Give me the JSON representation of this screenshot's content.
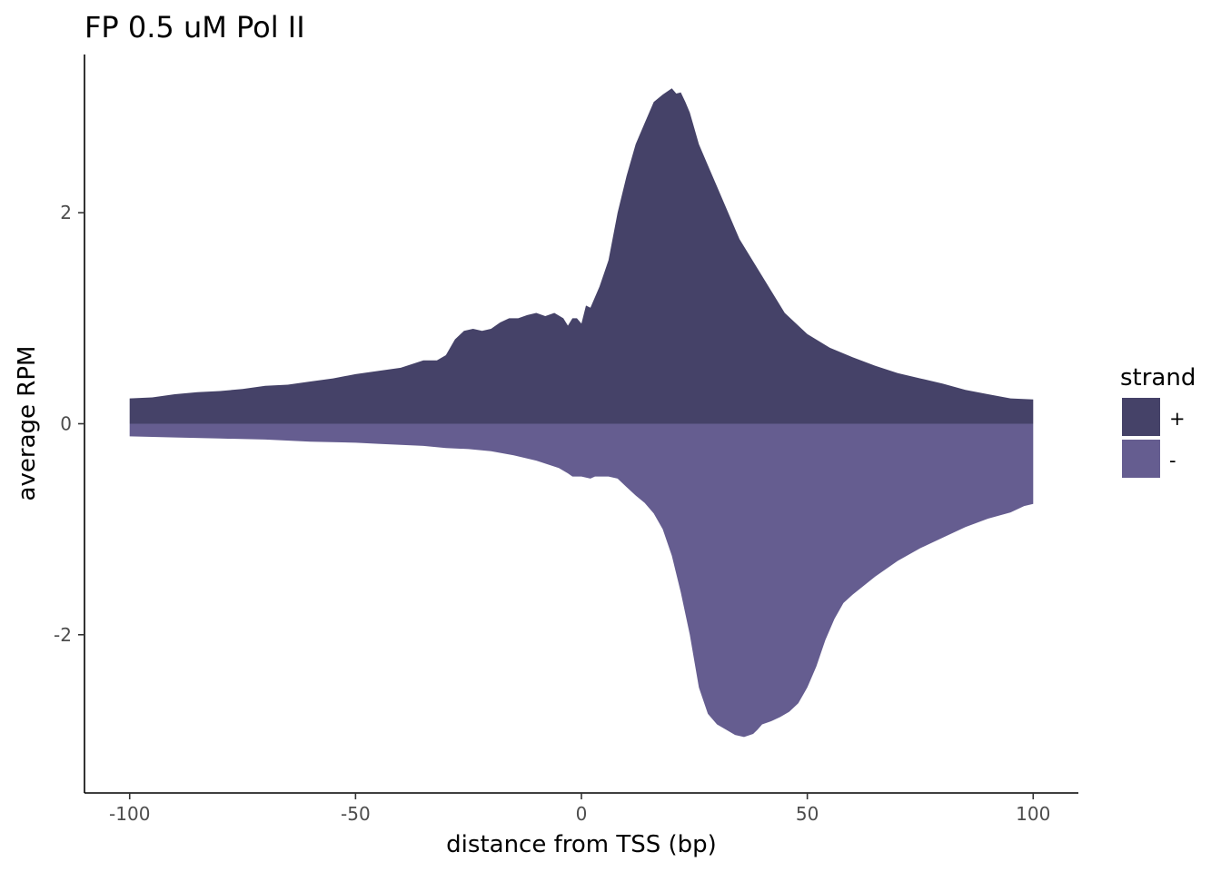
{
  "chart_data": {
    "type": "area",
    "title": "FP 0.5 uM Pol II",
    "xlabel": "distance from TSS (bp)",
    "ylabel": "average RPM",
    "xlim": [
      -110,
      110
    ],
    "ylim": [
      -3.5,
      3.5
    ],
    "x_ticks": [
      -100,
      -50,
      0,
      50,
      100
    ],
    "x_tick_labels": [
      "-100",
      "-50",
      "0",
      "50",
      "100"
    ],
    "y_ticks": [
      -2,
      0,
      2
    ],
    "y_tick_labels": [
      "-2",
      "0",
      "2"
    ],
    "grid": false,
    "legend": {
      "title": "strand",
      "position": "right"
    },
    "series": [
      {
        "name": "+",
        "color": "#454268",
        "x": [
          -100,
          -95,
          -90,
          -85,
          -80,
          -75,
          -70,
          -65,
          -60,
          -55,
          -50,
          -45,
          -40,
          -35,
          -32,
          -30,
          -28,
          -26,
          -24,
          -22,
          -20,
          -18,
          -16,
          -14,
          -12,
          -10,
          -8,
          -6,
          -4,
          -3,
          -2,
          -1,
          0,
          1,
          2,
          3,
          4,
          6,
          8,
          10,
          12,
          14,
          16,
          18,
          20,
          21,
          22,
          23,
          24,
          26,
          28,
          30,
          32,
          35,
          40,
          45,
          50,
          55,
          60,
          65,
          70,
          75,
          80,
          85,
          90,
          95,
          100
        ],
        "values": [
          0.24,
          0.25,
          0.28,
          0.3,
          0.31,
          0.33,
          0.36,
          0.37,
          0.4,
          0.43,
          0.47,
          0.5,
          0.53,
          0.6,
          0.6,
          0.65,
          0.8,
          0.88,
          0.9,
          0.88,
          0.9,
          0.96,
          1.0,
          1.0,
          1.03,
          1.05,
          1.02,
          1.05,
          1.0,
          0.93,
          1.0,
          1.0,
          0.95,
          1.12,
          1.1,
          1.2,
          1.3,
          1.55,
          2.0,
          2.35,
          2.65,
          2.85,
          3.05,
          3.12,
          3.18,
          3.13,
          3.14,
          3.05,
          2.95,
          2.65,
          2.45,
          2.25,
          2.05,
          1.75,
          1.4,
          1.05,
          0.85,
          0.72,
          0.63,
          0.55,
          0.48,
          0.43,
          0.38,
          0.32,
          0.28,
          0.24,
          0.23
        ]
      },
      {
        "name": "-",
        "color": "#655d90",
        "x": [
          -100,
          -90,
          -80,
          -70,
          -60,
          -50,
          -45,
          -40,
          -35,
          -30,
          -25,
          -20,
          -15,
          -10,
          -5,
          -3,
          -2,
          0,
          2,
          3,
          4,
          6,
          8,
          10,
          12,
          14,
          16,
          18,
          20,
          22,
          24,
          26,
          28,
          30,
          32,
          34,
          36,
          38,
          39,
          40,
          42,
          44,
          46,
          48,
          50,
          52,
          54,
          56,
          58,
          60,
          65,
          70,
          75,
          80,
          85,
          90,
          95,
          98,
          100
        ],
        "values": [
          -0.12,
          -0.13,
          -0.14,
          -0.15,
          -0.17,
          -0.18,
          -0.19,
          -0.2,
          -0.21,
          -0.23,
          -0.24,
          -0.26,
          -0.3,
          -0.35,
          -0.42,
          -0.47,
          -0.5,
          -0.5,
          -0.52,
          -0.5,
          -0.5,
          -0.5,
          -0.52,
          -0.6,
          -0.68,
          -0.75,
          -0.85,
          -1.0,
          -1.25,
          -1.6,
          -2.0,
          -2.5,
          -2.75,
          -2.85,
          -2.9,
          -2.95,
          -2.97,
          -2.94,
          -2.9,
          -2.85,
          -2.82,
          -2.78,
          -2.73,
          -2.65,
          -2.5,
          -2.3,
          -2.05,
          -1.85,
          -1.7,
          -1.62,
          -1.45,
          -1.3,
          -1.18,
          -1.08,
          -0.98,
          -0.9,
          -0.84,
          -0.78,
          -0.76
        ]
      }
    ]
  }
}
